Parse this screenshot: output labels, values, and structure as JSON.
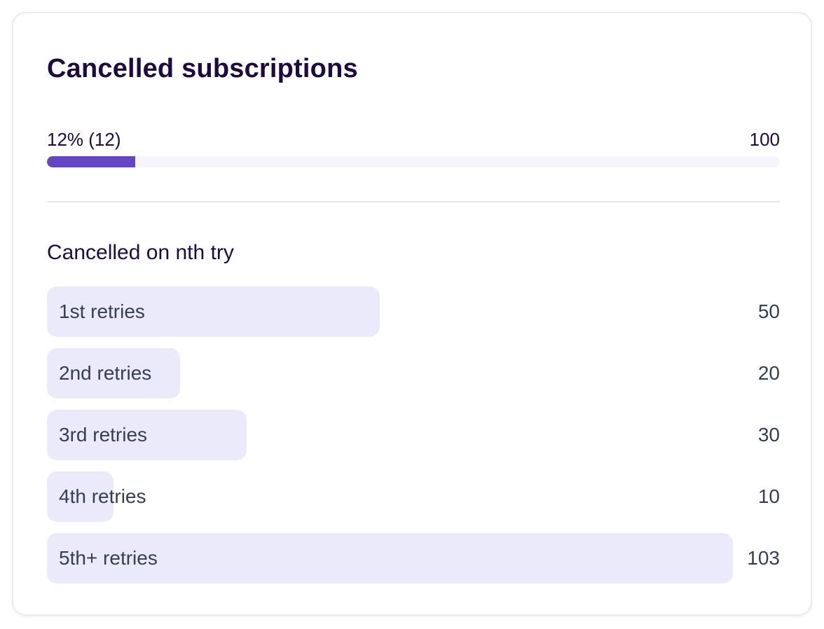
{
  "card": {
    "title": "Cancelled subscriptions",
    "progress": {
      "label": "12% (12)",
      "max_label": "100",
      "value": 12,
      "max": 100,
      "fill_color": "#6645c5",
      "track_color": "#f6f5fb"
    },
    "breakdown": {
      "title": "Cancelled on nth try",
      "bar_color": "#ebeafb",
      "max_value": 110,
      "items": [
        {
          "label": "1st retries",
          "value": 50,
          "value_label": "50"
        },
        {
          "label": "2nd retries",
          "value": 20,
          "value_label": "20"
        },
        {
          "label": "3rd retries",
          "value": 30,
          "value_label": "30"
        },
        {
          "label": "4th retries",
          "value": 10,
          "value_label": "10"
        },
        {
          "label": "5th+ retries",
          "value": 103,
          "value_label": "103"
        }
      ]
    }
  }
}
